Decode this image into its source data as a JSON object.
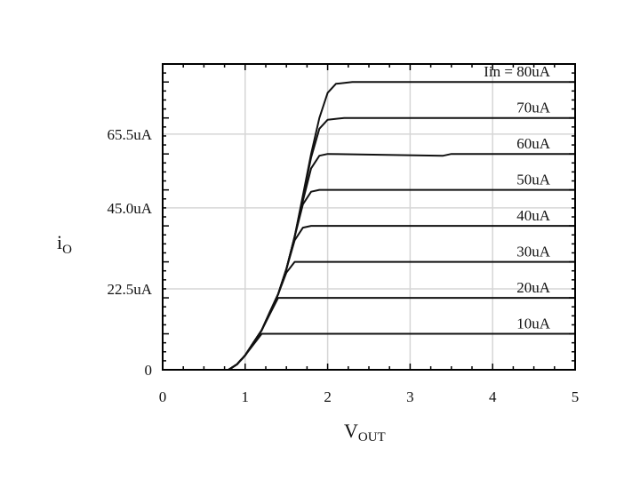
{
  "chart_data": {
    "type": "line",
    "title": "",
    "xlabel": {
      "main": "V",
      "sub": "OUT"
    },
    "ylabel": {
      "main": "i",
      "sub": "O"
    },
    "xlim": [
      0,
      5
    ],
    "ylim": [
      0,
      85
    ],
    "grid": true,
    "x_ticks": [
      0,
      1,
      2,
      3,
      4,
      5
    ],
    "x_tick_labels": [
      "0",
      "1",
      "2",
      "3",
      "4",
      "5"
    ],
    "y_ticks": [
      0,
      22.5,
      45.0,
      65.5
    ],
    "y_tick_labels": [
      "0",
      "22.5uA",
      "45.0uA",
      "65.5uA"
    ],
    "colors": {
      "curve": "#111111",
      "grid": "#d6d6d6",
      "frame": "#000000"
    },
    "series": [
      {
        "label": "10uA",
        "values": [
          [
            0,
            0
          ],
          [
            0.8,
            0
          ],
          [
            0.9,
            1.5
          ],
          [
            1.0,
            4
          ],
          [
            1.1,
            7
          ],
          [
            1.2,
            10
          ],
          [
            5,
            10
          ]
        ]
      },
      {
        "label": "20uA",
        "values": [
          [
            0,
            0
          ],
          [
            0.8,
            0
          ],
          [
            0.9,
            1.5
          ],
          [
            1.0,
            4
          ],
          [
            1.1,
            7.5
          ],
          [
            1.2,
            11
          ],
          [
            1.3,
            15.5
          ],
          [
            1.4,
            20
          ],
          [
            5,
            20
          ]
        ]
      },
      {
        "label": "30uA",
        "values": [
          [
            0,
            0
          ],
          [
            0.8,
            0
          ],
          [
            0.9,
            1.5
          ],
          [
            1.0,
            4
          ],
          [
            1.1,
            7.5
          ],
          [
            1.2,
            11
          ],
          [
            1.3,
            16
          ],
          [
            1.4,
            21
          ],
          [
            1.5,
            27
          ],
          [
            1.6,
            30
          ],
          [
            5,
            30
          ]
        ]
      },
      {
        "label": "40uA",
        "values": [
          [
            0,
            0
          ],
          [
            0.8,
            0
          ],
          [
            0.9,
            1.5
          ],
          [
            1.0,
            4
          ],
          [
            1.1,
            7.5
          ],
          [
            1.2,
            11
          ],
          [
            1.3,
            16
          ],
          [
            1.4,
            21
          ],
          [
            1.5,
            28
          ],
          [
            1.6,
            36
          ],
          [
            1.7,
            39.5
          ],
          [
            1.8,
            40
          ],
          [
            5,
            40
          ]
        ]
      },
      {
        "label": "50uA",
        "values": [
          [
            0,
            0
          ],
          [
            0.8,
            0
          ],
          [
            0.9,
            1.5
          ],
          [
            1.0,
            4
          ],
          [
            1.1,
            7.5
          ],
          [
            1.2,
            11
          ],
          [
            1.3,
            16
          ],
          [
            1.4,
            21
          ],
          [
            1.5,
            28
          ],
          [
            1.6,
            37
          ],
          [
            1.7,
            46
          ],
          [
            1.8,
            49.5
          ],
          [
            1.9,
            50
          ],
          [
            5,
            50
          ]
        ]
      },
      {
        "label": "60uA",
        "values": [
          [
            0,
            0
          ],
          [
            0.8,
            0
          ],
          [
            0.9,
            1.5
          ],
          [
            1.0,
            4
          ],
          [
            1.1,
            7.5
          ],
          [
            1.2,
            11
          ],
          [
            1.3,
            16
          ],
          [
            1.4,
            21
          ],
          [
            1.5,
            28
          ],
          [
            1.6,
            37
          ],
          [
            1.7,
            47
          ],
          [
            1.8,
            56
          ],
          [
            1.9,
            59.5
          ],
          [
            2.0,
            60
          ],
          [
            3.4,
            59.5
          ],
          [
            3.5,
            60
          ],
          [
            5,
            60
          ]
        ]
      },
      {
        "label": "70uA",
        "values": [
          [
            0,
            0
          ],
          [
            0.8,
            0
          ],
          [
            0.9,
            1.5
          ],
          [
            1.0,
            4
          ],
          [
            1.1,
            7.5
          ],
          [
            1.2,
            11
          ],
          [
            1.3,
            16
          ],
          [
            1.4,
            21
          ],
          [
            1.5,
            28
          ],
          [
            1.6,
            37
          ],
          [
            1.7,
            48
          ],
          [
            1.8,
            59
          ],
          [
            1.9,
            67
          ],
          [
            2.0,
            69.5
          ],
          [
            2.2,
            70
          ],
          [
            5,
            70
          ]
        ]
      },
      {
        "label": "Iin = 80uA",
        "values": [
          [
            0,
            0
          ],
          [
            0.8,
            0
          ],
          [
            0.9,
            1.5
          ],
          [
            1.0,
            4
          ],
          [
            1.1,
            7.5
          ],
          [
            1.2,
            11
          ],
          [
            1.3,
            16
          ],
          [
            1.4,
            21
          ],
          [
            1.5,
            28
          ],
          [
            1.6,
            37
          ],
          [
            1.7,
            48.5
          ],
          [
            1.8,
            60
          ],
          [
            1.9,
            70
          ],
          [
            2.0,
            77
          ],
          [
            2.1,
            79.5
          ],
          [
            2.3,
            80
          ],
          [
            5,
            80
          ]
        ]
      }
    ]
  }
}
